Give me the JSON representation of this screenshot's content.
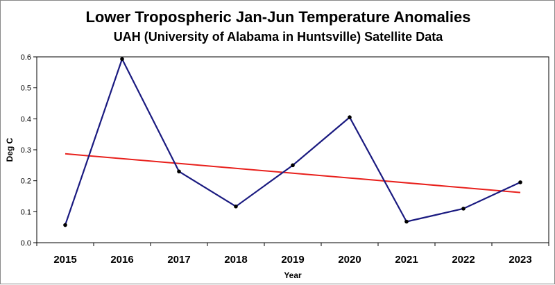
{
  "chart_data": {
    "type": "line",
    "title": "Lower Tropospheric Jan-Jun Temperature Anomalies",
    "subtitle": "UAH (University of Alabama in Huntsville) Satellite Data",
    "xlabel": "Year",
    "ylabel": "Deg C",
    "categories": [
      "2015",
      "2016",
      "2017",
      "2018",
      "2019",
      "2020",
      "2021",
      "2022",
      "2023"
    ],
    "series": [
      {
        "values": [
          0.057,
          0.593,
          0.23,
          0.117,
          0.25,
          0.405,
          0.068,
          0.11,
          0.195
        ],
        "color": "#1a1a80",
        "marker": "circle"
      }
    ],
    "trendline": {
      "start": 0.287,
      "end": 0.162,
      "color": "#e8201c"
    },
    "ylim": [
      0.0,
      0.6
    ],
    "yticks": [
      "0.0",
      "0.1",
      "0.2",
      "0.3",
      "0.4",
      "0.5",
      "0.6"
    ],
    "grid": false,
    "legend": "none"
  }
}
